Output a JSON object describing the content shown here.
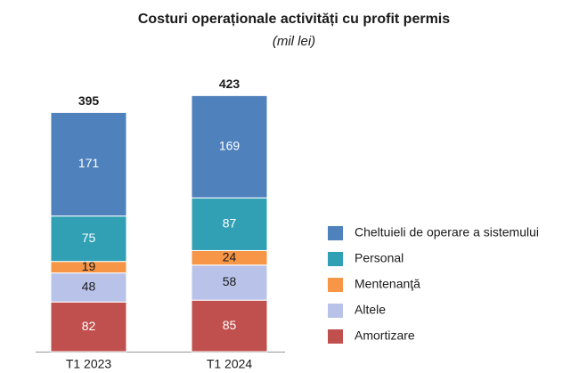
{
  "chart_data": {
    "type": "stacked_bar",
    "title": "Costuri operaționale activități cu profit permis",
    "subtitle": "(mil lei)",
    "categories": [
      "T1 2023",
      "T1 2024"
    ],
    "series": [
      {
        "name": "Amortizare",
        "color": "#c0504d",
        "label_color": "#ffffff",
        "values": [
          82,
          85
        ]
      },
      {
        "name": "Altele",
        "color": "#b9c3e9",
        "label_color": "#1a1a1a",
        "values": [
          48,
          58
        ]
      },
      {
        "name": "Mentenanţă",
        "color": "#f79646",
        "label_color": "#1a1a1a",
        "values": [
          19,
          24
        ]
      },
      {
        "name": "Personal",
        "color": "#31a0b5",
        "label_color": "#ffffff",
        "values": [
          75,
          87
        ]
      },
      {
        "name": "Cheltuieli de operare a sistemului",
        "color": "#4f81bd",
        "label_color": "#ffffff",
        "values": [
          171,
          169
        ]
      }
    ],
    "totals": [
      395,
      423
    ]
  }
}
